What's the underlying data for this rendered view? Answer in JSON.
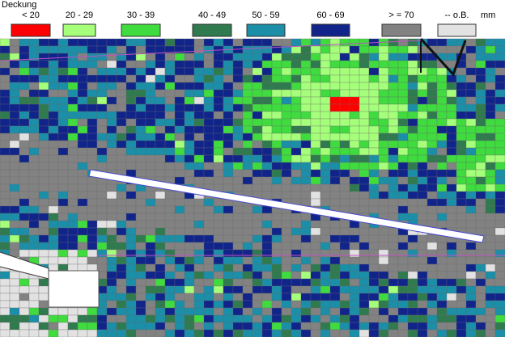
{
  "legend": {
    "title": "Deckung",
    "unit": "mm",
    "items": [
      {
        "label": "< 20",
        "color": "#ff0000"
      },
      {
        "label": "20 - 29",
        "color": "#a6ff7a"
      },
      {
        "label": "30 - 39",
        "color": "#3fdb3f"
      },
      {
        "label": "40 - 49",
        "color": "#2f7a4e"
      },
      {
        "label": "50 - 59",
        "color": "#1b8ea8"
      },
      {
        "label": "60 - 69",
        "color": "#10248a"
      },
      {
        "label": "> = 70",
        "color": "#828282"
      },
      {
        "label": "-- o.B.",
        "color": "#e2e2e2"
      }
    ]
  }
}
